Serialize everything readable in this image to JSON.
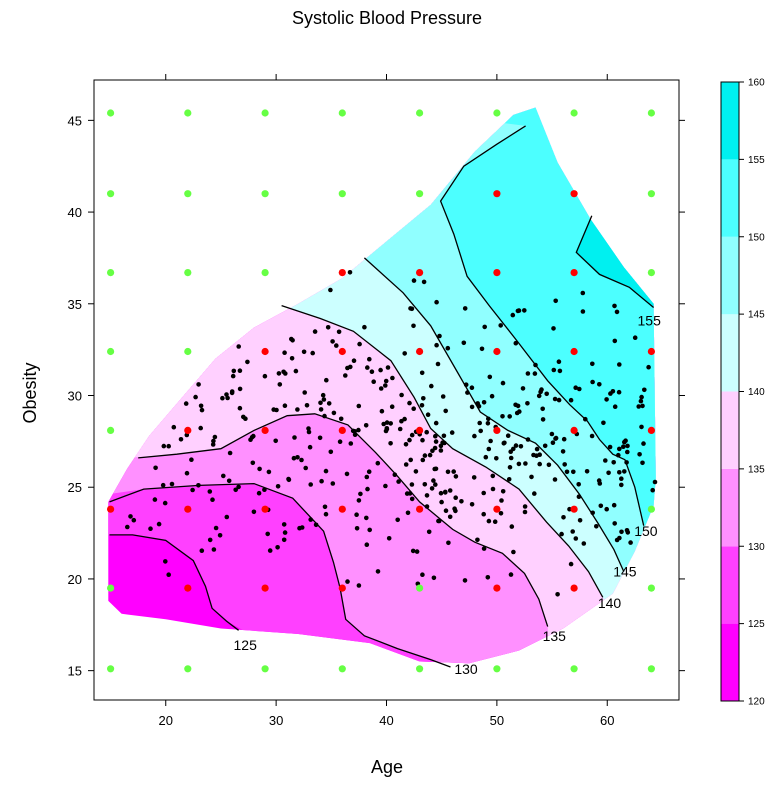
{
  "chart_data": {
    "type": "contour",
    "title": "Systolic Blood Pressure",
    "xlabel": "Age",
    "ylabel": "Obesity",
    "xlim": [
      13.5,
      66.5
    ],
    "ylim": [
      13.4,
      47.2
    ],
    "x_ticks": [
      20,
      30,
      40,
      50,
      60
    ],
    "y_ticks": [
      15,
      20,
      25,
      30,
      35,
      40,
      45
    ],
    "levels": [
      120,
      125,
      130,
      135,
      140,
      145,
      150,
      155,
      160
    ],
    "colors": {
      "120-125": "#ff00ff",
      "125-130": "#ff40ff",
      "130-135": "#ff90ff",
      "135-140": "#ffd0ff",
      "140-145": "#ccffff",
      "145-150": "#90ffff",
      "150-155": "#4cffff",
      "155-160": "#00f0f0"
    },
    "colorkey": {
      "ticks": [
        "120",
        "125",
        "130",
        "135",
        "140",
        "145",
        "150",
        "155",
        "160"
      ]
    },
    "contour_labels": [
      {
        "text": "125",
        "x": 27.2,
        "y": 16.4
      },
      {
        "text": "130",
        "x": 47.2,
        "y": 15.1
      },
      {
        "text": "135",
        "x": 55.2,
        "y": 16.9
      },
      {
        "text": "140",
        "x": 60.2,
        "y": 18.7
      },
      {
        "text": "145",
        "x": 61.6,
        "y": 20.4
      },
      {
        "text": "150",
        "x": 63.5,
        "y": 22.6
      },
      {
        "text": "155",
        "x": 63.8,
        "y": 34.1
      }
    ],
    "grid_points": {
      "x": [
        15,
        22,
        29,
        36,
        43,
        50,
        57,
        64
      ],
      "y": [
        15.1,
        19.5,
        23.8,
        28.1,
        32.4,
        36.7,
        41.0,
        45.4
      ],
      "inside_color": "#ff0000",
      "outside_color": "#66ff44",
      "inside": [
        [
          0,
          23.8
        ],
        [
          1,
          19.5
        ],
        [
          1,
          23.8
        ],
        [
          1,
          28.1
        ],
        [
          2,
          19.5
        ],
        [
          2,
          23.8
        ],
        [
          2,
          28.1
        ],
        [
          2,
          32.4
        ],
        [
          3,
          19.5
        ],
        [
          3,
          23.8
        ],
        [
          3,
          28.1
        ],
        [
          3,
          32.4
        ],
        [
          3,
          36.7
        ],
        [
          4,
          23.8
        ],
        [
          4,
          28.1
        ],
        [
          4,
          32.4
        ],
        [
          4,
          36.7
        ],
        [
          5,
          19.5
        ],
        [
          5,
          23.8
        ],
        [
          5,
          28.1
        ],
        [
          5,
          32.4
        ],
        [
          5,
          36.7
        ],
        [
          5,
          41.0
        ],
        [
          6,
          19.5
        ],
        [
          6,
          23.8
        ],
        [
          6,
          28.1
        ],
        [
          6,
          32.4
        ],
        [
          6,
          36.7
        ],
        [
          6,
          41.0
        ],
        [
          7,
          28.1
        ],
        [
          7,
          32.4
        ]
      ]
    }
  }
}
